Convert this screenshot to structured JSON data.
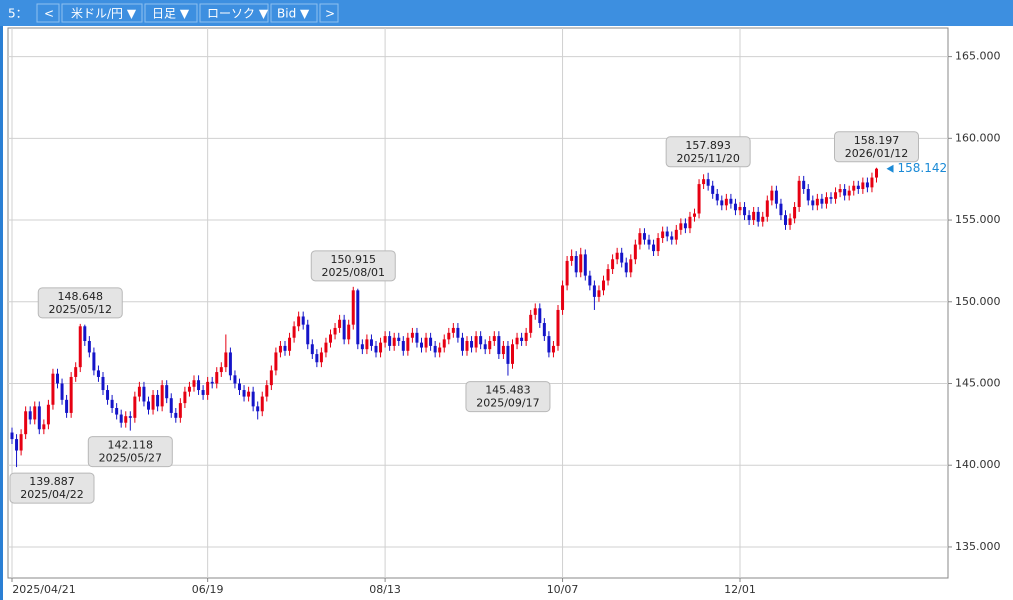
{
  "toolbar": [
    "5：",
    "<",
    "米ドル/円 ▼",
    "日足 ▼",
    "ローソク ▼",
    "Bid ▼",
    ">"
  ],
  "chart_data": {
    "type": "candlestick",
    "up_color": "#e60012",
    "down_color": "#1414c8",
    "grid": true,
    "ylim": [
      133.1,
      166.75
    ],
    "yticks": [
      {
        "value": 135,
        "label": "135.000"
      },
      {
        "value": 140,
        "label": "140.000"
      },
      {
        "value": 145,
        "label": "145.000"
      },
      {
        "value": 150,
        "label": "150.000"
      },
      {
        "value": 155,
        "label": "155.000"
      },
      {
        "value": 160,
        "label": "160.000"
      },
      {
        "value": 165,
        "label": "165.000"
      }
    ],
    "xticks": [
      {
        "value": 0,
        "label": "2025/04/21"
      },
      {
        "value": 43,
        "label": "06/19"
      },
      {
        "value": 82,
        "label": "08/13"
      },
      {
        "value": 121,
        "label": "10/07"
      },
      {
        "value": 160,
        "label": "12/01"
      }
    ],
    "current": 158.142,
    "annotations": [
      {
        "value": 139.887,
        "date": "2025/04/22"
      },
      {
        "value": 148.648,
        "date": "2025/05/12"
      },
      {
        "value": 142.118,
        "date": "2025/05/27"
      },
      {
        "value": 150.915,
        "date": "2025/08/01"
      },
      {
        "value": 145.483,
        "date": "2025/09/17"
      },
      {
        "value": 157.893,
        "date": "2025/11/20"
      },
      {
        "value": 158.197,
        "date": "2026/01/12"
      }
    ],
    "ohlc": [
      [
        142.0,
        142.3,
        141.3,
        141.6
      ],
      [
        141.6,
        141.9,
        139.887,
        140.9
      ],
      [
        140.9,
        142.2,
        140.6,
        141.9
      ],
      [
        141.9,
        143.6,
        141.6,
        143.3
      ],
      [
        143.3,
        143.6,
        142.5,
        142.8
      ],
      [
        142.8,
        143.9,
        142.5,
        143.6
      ],
      [
        143.6,
        143.9,
        141.9,
        142.2
      ],
      [
        142.2,
        142.8,
        141.9,
        142.5
      ],
      [
        142.5,
        144.0,
        142.2,
        143.7
      ],
      [
        143.7,
        145.9,
        143.4,
        145.6
      ],
      [
        145.6,
        145.9,
        144.7,
        145.0
      ],
      [
        145.0,
        145.3,
        143.7,
        144.0
      ],
      [
        144.0,
        144.3,
        142.9,
        143.2
      ],
      [
        143.2,
        145.7,
        142.9,
        145.4
      ],
      [
        145.4,
        146.3,
        145.1,
        146.0
      ],
      [
        146.0,
        148.648,
        145.7,
        148.5
      ],
      [
        148.5,
        148.6,
        147.3,
        147.6
      ],
      [
        147.6,
        147.9,
        146.6,
        146.9
      ],
      [
        146.9,
        147.2,
        145.5,
        145.8
      ],
      [
        145.8,
        146.1,
        145.1,
        145.4
      ],
      [
        145.4,
        145.7,
        144.3,
        144.6
      ],
      [
        144.6,
        144.9,
        143.7,
        144.0
      ],
      [
        144.0,
        144.3,
        143.2,
        143.5
      ],
      [
        143.5,
        143.8,
        142.8,
        143.1
      ],
      [
        143.1,
        143.4,
        142.3,
        142.6
      ],
      [
        142.6,
        143.3,
        142.3,
        143.0
      ],
      [
        143.0,
        143.3,
        142.118,
        142.9
      ],
      [
        142.9,
        144.5,
        142.6,
        144.2
      ],
      [
        144.2,
        145.1,
        143.9,
        144.8
      ],
      [
        144.8,
        145.1,
        143.6,
        143.9
      ],
      [
        143.9,
        144.2,
        143.1,
        143.4
      ],
      [
        143.4,
        144.6,
        143.1,
        144.3
      ],
      [
        144.3,
        144.6,
        143.3,
        143.6
      ],
      [
        143.6,
        145.2,
        143.3,
        144.9
      ],
      [
        144.9,
        145.2,
        143.8,
        144.1
      ],
      [
        144.1,
        144.4,
        142.9,
        143.2
      ],
      [
        143.2,
        143.5,
        142.6,
        142.9
      ],
      [
        142.9,
        144.1,
        142.6,
        143.8
      ],
      [
        143.8,
        144.8,
        143.5,
        144.5
      ],
      [
        144.5,
        145.1,
        144.2,
        144.8
      ],
      [
        144.8,
        145.5,
        144.5,
        145.2
      ],
      [
        145.2,
        145.5,
        144.3,
        144.6
      ],
      [
        144.6,
        144.9,
        144.0,
        144.3
      ],
      [
        144.3,
        145.4,
        144.0,
        145.1
      ],
      [
        145.1,
        145.4,
        144.7,
        145.0
      ],
      [
        145.0,
        146.0,
        144.7,
        145.7
      ],
      [
        145.7,
        146.3,
        145.4,
        146.0
      ],
      [
        146.0,
        148.0,
        145.7,
        146.9
      ],
      [
        146.9,
        147.2,
        145.2,
        145.5
      ],
      [
        145.5,
        145.8,
        144.7,
        145.0
      ],
      [
        145.0,
        145.3,
        144.3,
        144.6
      ],
      [
        144.6,
        144.9,
        143.9,
        144.2
      ],
      [
        144.2,
        144.8,
        143.9,
        144.5
      ],
      [
        144.5,
        144.8,
        143.3,
        143.6
      ],
      [
        143.6,
        143.9,
        142.8,
        143.3
      ],
      [
        143.3,
        144.5,
        143.0,
        144.2
      ],
      [
        144.2,
        145.2,
        143.9,
        144.9
      ],
      [
        144.9,
        146.1,
        144.6,
        145.8
      ],
      [
        145.8,
        147.2,
        145.5,
        146.9
      ],
      [
        146.9,
        147.6,
        146.6,
        147.3
      ],
      [
        147.3,
        147.6,
        146.7,
        147.0
      ],
      [
        147.0,
        148.1,
        146.7,
        147.8
      ],
      [
        147.8,
        148.8,
        147.5,
        148.5
      ],
      [
        148.5,
        149.4,
        148.2,
        149.1
      ],
      [
        149.1,
        149.4,
        148.3,
        148.6
      ],
      [
        148.6,
        148.9,
        147.1,
        147.4
      ],
      [
        147.4,
        147.7,
        146.5,
        146.8
      ],
      [
        146.8,
        147.1,
        146.0,
        146.3
      ],
      [
        146.3,
        147.2,
        146.0,
        146.9
      ],
      [
        146.9,
        147.8,
        146.6,
        147.5
      ],
      [
        147.5,
        148.3,
        147.2,
        148.0
      ],
      [
        148.0,
        148.7,
        147.7,
        148.4
      ],
      [
        148.4,
        149.2,
        148.1,
        148.9
      ],
      [
        148.9,
        149.2,
        147.4,
        147.7
      ],
      [
        147.7,
        148.9,
        147.4,
        148.6
      ],
      [
        148.6,
        150.915,
        148.3,
        150.7
      ],
      [
        150.7,
        150.8,
        147.1,
        147.4
      ],
      [
        147.4,
        147.7,
        146.8,
        147.1
      ],
      [
        147.1,
        148.0,
        146.8,
        147.7
      ],
      [
        147.7,
        148.0,
        147.0,
        147.3
      ],
      [
        147.3,
        147.6,
        146.6,
        146.9
      ],
      [
        146.9,
        147.8,
        146.6,
        147.5
      ],
      [
        147.5,
        148.2,
        147.2,
        147.9
      ],
      [
        147.9,
        148.2,
        147.0,
        147.3
      ],
      [
        147.3,
        148.1,
        147.0,
        147.8
      ],
      [
        147.8,
        148.1,
        147.3,
        147.6
      ],
      [
        147.6,
        147.9,
        146.7,
        147.0
      ],
      [
        147.0,
        148.1,
        146.7,
        147.8
      ],
      [
        147.8,
        148.4,
        147.5,
        148.1
      ],
      [
        148.1,
        148.4,
        147.2,
        147.5
      ],
      [
        147.5,
        147.8,
        146.9,
        147.2
      ],
      [
        147.2,
        148.1,
        146.9,
        147.8
      ],
      [
        147.8,
        148.1,
        147.0,
        147.3
      ],
      [
        147.3,
        147.6,
        146.6,
        146.9
      ],
      [
        146.9,
        147.5,
        146.6,
        147.2
      ],
      [
        147.2,
        148.0,
        146.9,
        147.7
      ],
      [
        147.7,
        148.4,
        147.4,
        148.1
      ],
      [
        148.1,
        148.7,
        147.8,
        148.4
      ],
      [
        148.4,
        148.7,
        147.5,
        147.8
      ],
      [
        147.8,
        148.1,
        146.7,
        147.0
      ],
      [
        147.0,
        147.9,
        146.7,
        147.6
      ],
      [
        147.6,
        147.9,
        146.9,
        147.2
      ],
      [
        147.2,
        148.2,
        146.9,
        147.9
      ],
      [
        147.9,
        148.2,
        147.1,
        147.4
      ],
      [
        147.4,
        147.7,
        146.8,
        147.1
      ],
      [
        147.1,
        147.9,
        146.8,
        147.6
      ],
      [
        147.6,
        148.2,
        147.3,
        147.9
      ],
      [
        147.9,
        148.2,
        146.5,
        146.8
      ],
      [
        146.8,
        147.6,
        146.5,
        147.3
      ],
      [
        147.3,
        147.6,
        145.483,
        146.2
      ],
      [
        146.2,
        147.7,
        145.9,
        147.4
      ],
      [
        147.4,
        148.1,
        147.1,
        147.8
      ],
      [
        147.8,
        148.1,
        147.3,
        147.6
      ],
      [
        147.6,
        148.4,
        147.3,
        148.1
      ],
      [
        148.1,
        149.5,
        147.8,
        149.2
      ],
      [
        149.2,
        149.9,
        148.9,
        149.6
      ],
      [
        149.6,
        149.9,
        148.4,
        148.7
      ],
      [
        148.7,
        149.0,
        147.6,
        147.9
      ],
      [
        147.9,
        148.2,
        146.6,
        146.9
      ],
      [
        146.9,
        147.6,
        146.6,
        147.3
      ],
      [
        147.3,
        149.8,
        147.0,
        149.5
      ],
      [
        149.5,
        151.3,
        149.2,
        151.0
      ],
      [
        151.0,
        152.8,
        150.7,
        152.5
      ],
      [
        152.5,
        153.2,
        152.2,
        152.8
      ],
      [
        152.8,
        153.1,
        151.5,
        151.8
      ],
      [
        151.8,
        153.3,
        151.5,
        152.9
      ],
      [
        152.9,
        153.2,
        151.3,
        151.6
      ],
      [
        151.6,
        151.9,
        150.7,
        151.0
      ],
      [
        151.0,
        151.3,
        149.5,
        150.3
      ],
      [
        150.3,
        151.0,
        150.0,
        150.7
      ],
      [
        150.7,
        151.6,
        150.4,
        151.3
      ],
      [
        151.3,
        152.3,
        151.0,
        152.0
      ],
      [
        152.0,
        152.9,
        151.7,
        152.6
      ],
      [
        152.6,
        153.3,
        152.3,
        153.0
      ],
      [
        153.0,
        153.3,
        152.1,
        152.4
      ],
      [
        152.4,
        152.7,
        151.5,
        151.8
      ],
      [
        151.8,
        152.9,
        151.5,
        152.6
      ],
      [
        152.6,
        153.8,
        152.3,
        153.5
      ],
      [
        153.5,
        154.5,
        153.2,
        154.2
      ],
      [
        154.2,
        154.5,
        153.5,
        153.8
      ],
      [
        153.8,
        154.1,
        153.2,
        153.5
      ],
      [
        153.5,
        153.8,
        152.8,
        153.1
      ],
      [
        153.1,
        154.2,
        152.8,
        153.9
      ],
      [
        153.9,
        154.6,
        153.6,
        154.3
      ],
      [
        154.3,
        154.6,
        153.7,
        154.0
      ],
      [
        154.0,
        154.3,
        153.5,
        153.8
      ],
      [
        153.8,
        154.7,
        153.5,
        154.4
      ],
      [
        154.4,
        155.1,
        154.1,
        154.8
      ],
      [
        154.8,
        155.1,
        154.2,
        154.5
      ],
      [
        154.5,
        155.5,
        154.2,
        155.2
      ],
      [
        155.2,
        155.7,
        154.9,
        155.4
      ],
      [
        155.4,
        157.5,
        155.1,
        157.2
      ],
      [
        157.2,
        157.8,
        156.9,
        157.5
      ],
      [
        157.5,
        157.893,
        156.8,
        157.1
      ],
      [
        157.1,
        157.4,
        156.3,
        156.6
      ],
      [
        156.6,
        156.9,
        155.9,
        156.2
      ],
      [
        156.2,
        156.5,
        155.6,
        155.9
      ],
      [
        155.9,
        156.6,
        155.6,
        156.3
      ],
      [
        156.3,
        156.6,
        155.7,
        156.0
      ],
      [
        156.0,
        156.3,
        155.3,
        155.6
      ],
      [
        155.6,
        156.1,
        155.3,
        155.8
      ],
      [
        155.8,
        156.1,
        155.0,
        155.3
      ],
      [
        155.3,
        155.6,
        154.7,
        155.0
      ],
      [
        155.0,
        155.8,
        154.7,
        155.5
      ],
      [
        155.5,
        155.8,
        154.6,
        154.9
      ],
      [
        154.9,
        155.5,
        154.6,
        155.2
      ],
      [
        155.2,
        156.5,
        154.9,
        156.2
      ],
      [
        156.2,
        157.1,
        155.9,
        156.8
      ],
      [
        156.8,
        157.1,
        155.7,
        156.0
      ],
      [
        156.0,
        156.3,
        155.0,
        155.3
      ],
      [
        155.3,
        155.6,
        154.4,
        154.7
      ],
      [
        154.7,
        155.4,
        154.4,
        155.1
      ],
      [
        155.1,
        156.1,
        154.8,
        155.8
      ],
      [
        155.8,
        157.7,
        155.5,
        157.4
      ],
      [
        157.4,
        157.7,
        156.6,
        156.9
      ],
      [
        156.9,
        157.2,
        155.9,
        156.2
      ],
      [
        156.2,
        156.5,
        155.6,
        155.9
      ],
      [
        155.9,
        156.6,
        155.6,
        156.3
      ],
      [
        156.3,
        156.6,
        155.7,
        156.0
      ],
      [
        156.0,
        156.7,
        155.7,
        156.4
      ],
      [
        156.4,
        156.7,
        156.0,
        156.3
      ],
      [
        156.3,
        157.0,
        156.0,
        156.7
      ],
      [
        156.7,
        157.2,
        156.4,
        156.9
      ],
      [
        156.9,
        157.2,
        156.2,
        156.5
      ],
      [
        156.5,
        157.1,
        156.2,
        156.8
      ],
      [
        156.8,
        157.4,
        156.5,
        157.1
      ],
      [
        157.1,
        157.4,
        156.6,
        156.9
      ],
      [
        156.9,
        157.6,
        156.6,
        157.3
      ],
      [
        157.3,
        157.6,
        156.7,
        157.0
      ],
      [
        157.0,
        157.9,
        156.7,
        157.6
      ],
      [
        157.6,
        158.197,
        157.3,
        158.142
      ]
    ]
  }
}
